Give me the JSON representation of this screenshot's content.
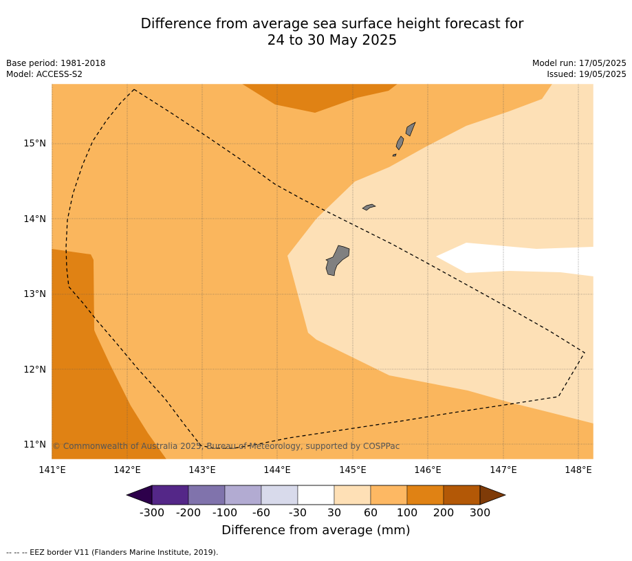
{
  "title": {
    "line1": "Difference from average sea surface height forecast for",
    "line2": "24 to 30 May 2025"
  },
  "meta_left": {
    "base_period": "Base period: 1981-2018",
    "model": "Model: ACCESS-S2"
  },
  "meta_right": {
    "model_run": "Model run: 17/05/2025",
    "issued": "Issued: 19/05/2025"
  },
  "map": {
    "lon_range": [
      141,
      148.2
    ],
    "lat_range": [
      10.8,
      15.8
    ],
    "lon_labels": [
      "141°E",
      "142°E",
      "143°E",
      "144°E",
      "145°E",
      "146°E",
      "147°E",
      "148°E"
    ],
    "lat_labels": [
      "11°N",
      "12°N",
      "13°N",
      "14°N",
      "15°N"
    ],
    "copyright": "© Commonwealth of Australia 2025, Bureau of Meteorology, supported by COSPPac",
    "colors": {
      "c30_60": "#fde0b6",
      "c60_100": "#fab65d",
      "c100_200": "#e08214",
      "land": "#808080",
      "grid": "#555555"
    }
  },
  "colorbar": {
    "ticks": [
      "-300",
      "-200",
      "-100",
      "-60",
      "-30",
      "30",
      "60",
      "100",
      "200",
      "300"
    ],
    "colors": [
      "#2d004b",
      "#542788",
      "#8073ac",
      "#b2abd2",
      "#d8daeb",
      "#ffffff",
      "#fee0b6",
      "#fdb863",
      "#e08214",
      "#b35806",
      "#7f3b08"
    ],
    "title": "Difference from average (mm)"
  },
  "footer": "--  --  -- EEZ border V11 (Flanders Marine Institute, 2019)."
}
